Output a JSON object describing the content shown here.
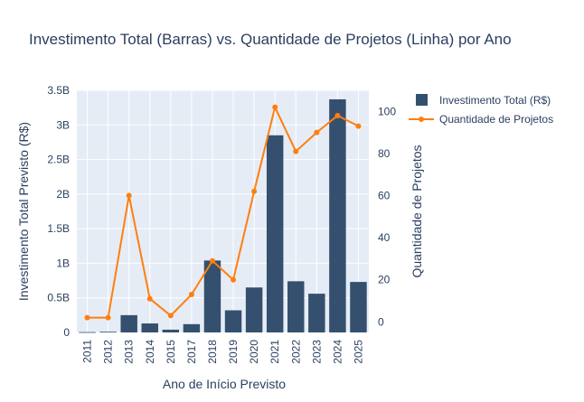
{
  "chart_data": {
    "type": "bar+line",
    "title": "Investimento Total (Barras) vs. Quantidade de Projetos (Linha) por Ano",
    "xlabel": "Ano de Início Previsto",
    "ylabel_left": "Investimento Total Previsto (R$)",
    "ylabel_right": "Quantidade de Projetos",
    "categories": [
      "2011",
      "2012",
      "2013",
      "2014",
      "2015",
      "2017",
      "2018",
      "2019",
      "2020",
      "2021",
      "2022",
      "2023",
      "2024",
      "2025"
    ],
    "series": [
      {
        "name": "Investimento Total (R$)",
        "type": "bar",
        "axis": "left",
        "color": "#34506e",
        "values": [
          5000000,
          10000000,
          250000000,
          130000000,
          40000000,
          120000000,
          1040000000,
          320000000,
          650000000,
          2850000000,
          740000000,
          560000000,
          3370000000,
          730000000
        ]
      },
      {
        "name": "Quantidade de Projetos",
        "type": "line",
        "axis": "right",
        "color": "#ff7f0e",
        "values": [
          2,
          2,
          60,
          11,
          3,
          13,
          29,
          20,
          62,
          102,
          81,
          90,
          98,
          93
        ]
      }
    ],
    "ylim_left": [
      0,
      3500000000
    ],
    "yticks_left": [
      {
        "v": 0,
        "label": "0"
      },
      {
        "v": 500000000,
        "label": "0.5B"
      },
      {
        "v": 1000000000,
        "label": "1B"
      },
      {
        "v": 1500000000,
        "label": "1.5B"
      },
      {
        "v": 2000000000,
        "label": "2B"
      },
      {
        "v": 2500000000,
        "label": "2.5B"
      },
      {
        "v": 3000000000,
        "label": "3B"
      },
      {
        "v": 3500000000,
        "label": "3.5B"
      }
    ],
    "ylim_right": [
      -5,
      110
    ],
    "yticks_right": [
      0,
      20,
      40,
      60,
      80,
      100
    ],
    "grid": true,
    "legend_position": "top-right",
    "plot_bg": "#e5ecf6"
  }
}
